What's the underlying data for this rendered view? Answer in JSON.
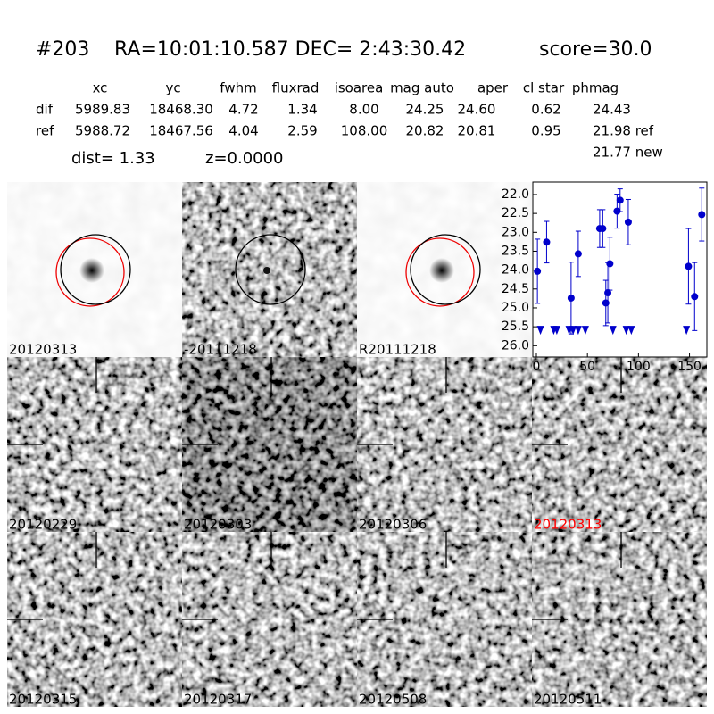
{
  "header": {
    "id": "#203",
    "coords": "RA=10:01:10.587 DEC= 2:43:30.42",
    "score": "score=30.0"
  },
  "table": {
    "columns": [
      "xc",
      "yc",
      "fwhm",
      "fluxrad",
      "isoarea",
      "mag auto",
      "aper",
      "cl star",
      "phmag"
    ],
    "rows": [
      {
        "label": "dif",
        "values": [
          "5989.83",
          "18468.30",
          "4.72",
          "1.34",
          "8.00",
          "24.25",
          "24.60",
          "0.62",
          "24.43"
        ]
      },
      {
        "label": "ref",
        "values": [
          "5988.72",
          "18467.56",
          "4.04",
          "2.59",
          "108.00",
          "20.82",
          "20.81",
          "0.95",
          "21.98 ref"
        ]
      }
    ],
    "extra": "21.77 new"
  },
  "dist": "dist=  1.33",
  "z": "z=0.0000",
  "panels": [
    {
      "label": "20120313",
      "color": "#000000"
    },
    {
      "label": "-20111218",
      "color": "#000000"
    },
    {
      "label": "R20111218",
      "color": "#000000"
    },
    {
      "label": "20120229",
      "color": "#000000"
    },
    {
      "label": "20120303",
      "color": "#000000"
    },
    {
      "label": "20120306",
      "color": "#000000"
    },
    {
      "label": "20120313",
      "color": "#ff0000"
    },
    {
      "label": "20120315",
      "color": "#000000"
    },
    {
      "label": "20120317",
      "color": "#000000"
    },
    {
      "label": "20120508",
      "color": "#000000"
    },
    {
      "label": "20120511",
      "color": "#000000"
    }
  ],
  "chart_data": {
    "type": "scatter",
    "xlim": [
      -3.5,
      167
    ],
    "ylim": [
      26.3,
      21.67
    ],
    "xticks": [
      0,
      50,
      100,
      150
    ],
    "yticks": [
      {
        "value": 22,
        "label": "22.0"
      },
      {
        "value": 22.5,
        "label": "22.5"
      },
      {
        "value": 23,
        "label": "23.0"
      },
      {
        "value": 23.5,
        "label": "23.5"
      },
      {
        "value": 24,
        "label": "24.0"
      },
      {
        "value": 24.5,
        "label": "24.5"
      },
      {
        "value": 25,
        "label": "25.0"
      },
      {
        "value": 25.5,
        "label": "25.5"
      },
      {
        "value": 26,
        "label": "26.0"
      }
    ],
    "series": [
      {
        "color": "#0000cc",
        "marker": "circle",
        "x": [
          1,
          10,
          34,
          41,
          62,
          65,
          68,
          70,
          72,
          79,
          82,
          90,
          149,
          155,
          162
        ],
        "values": [
          24.03,
          23.26,
          24.74,
          23.57,
          22.9,
          22.9,
          24.87,
          24.6,
          23.83,
          22.44,
          22.15,
          22.73,
          23.9,
          24.7,
          22.53
        ],
        "errors": [
          0.85,
          0.55,
          0.95,
          0.6,
          0.5,
          0.5,
          0.6,
          0.8,
          0.7,
          0.45,
          0.3,
          0.6,
          1.0,
          0.9,
          0.7
        ]
      },
      {
        "color": "#0000cc",
        "marker": "triangle",
        "x": [
          4,
          17,
          20,
          32,
          36,
          41,
          48,
          75,
          88,
          93,
          147
        ],
        "values": [
          25.57,
          25.57,
          25.57,
          25.57,
          25.57,
          25.57,
          25.57,
          25.57,
          25.57,
          25.57,
          25.57
        ]
      }
    ]
  }
}
